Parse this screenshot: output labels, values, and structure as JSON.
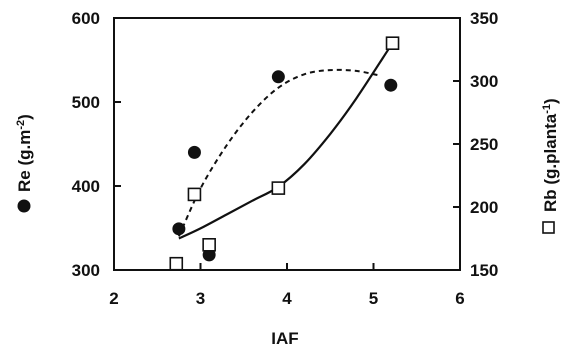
{
  "chart_data": {
    "type": "scatter",
    "xlabel": "IAF",
    "ylabel_left": {
      "prefix": "Re (g.m",
      "sup": "-2",
      "suffix": ")"
    },
    "ylabel_right": {
      "prefix": "Rb (g.planta",
      "sup": "-1",
      "suffix": ")"
    },
    "xlim": [
      2,
      6
    ],
    "xticks": [
      2,
      3,
      4,
      5,
      6
    ],
    "ylim_left": [
      300,
      600
    ],
    "yticks_left": [
      300,
      400,
      500,
      600
    ],
    "ylim_right": [
      150,
      350
    ],
    "yticks_right": [
      150,
      200,
      250,
      300,
      350
    ],
    "grid": false,
    "series": [
      {
        "name": "Re",
        "axis": "left",
        "marker": "filled-circle",
        "line": "dashed",
        "x": [
          2.75,
          2.93,
          3.1,
          3.9,
          5.2
        ],
        "y": [
          349,
          440,
          318,
          530,
          520
        ],
        "fit_x": [
          2.75,
          3.0,
          3.3,
          3.6,
          3.9,
          4.2,
          4.5,
          4.8,
          5.05
        ],
        "fit_y": [
          340,
          397,
          448,
          488,
          517,
          533,
          538,
          537,
          532
        ]
      },
      {
        "name": "Rb",
        "axis": "right",
        "marker": "open-square",
        "line": "solid",
        "x": [
          2.72,
          2.93,
          3.1,
          3.9,
          5.22
        ],
        "y": [
          155,
          210,
          170,
          215,
          330
        ],
        "fit_x": [
          2.75,
          3.0,
          3.3,
          3.6,
          3.9,
          4.2,
          4.5,
          4.8,
          5.2
        ],
        "fit_y": [
          175,
          183,
          194,
          205,
          216,
          234,
          258,
          286,
          328
        ]
      }
    ]
  }
}
